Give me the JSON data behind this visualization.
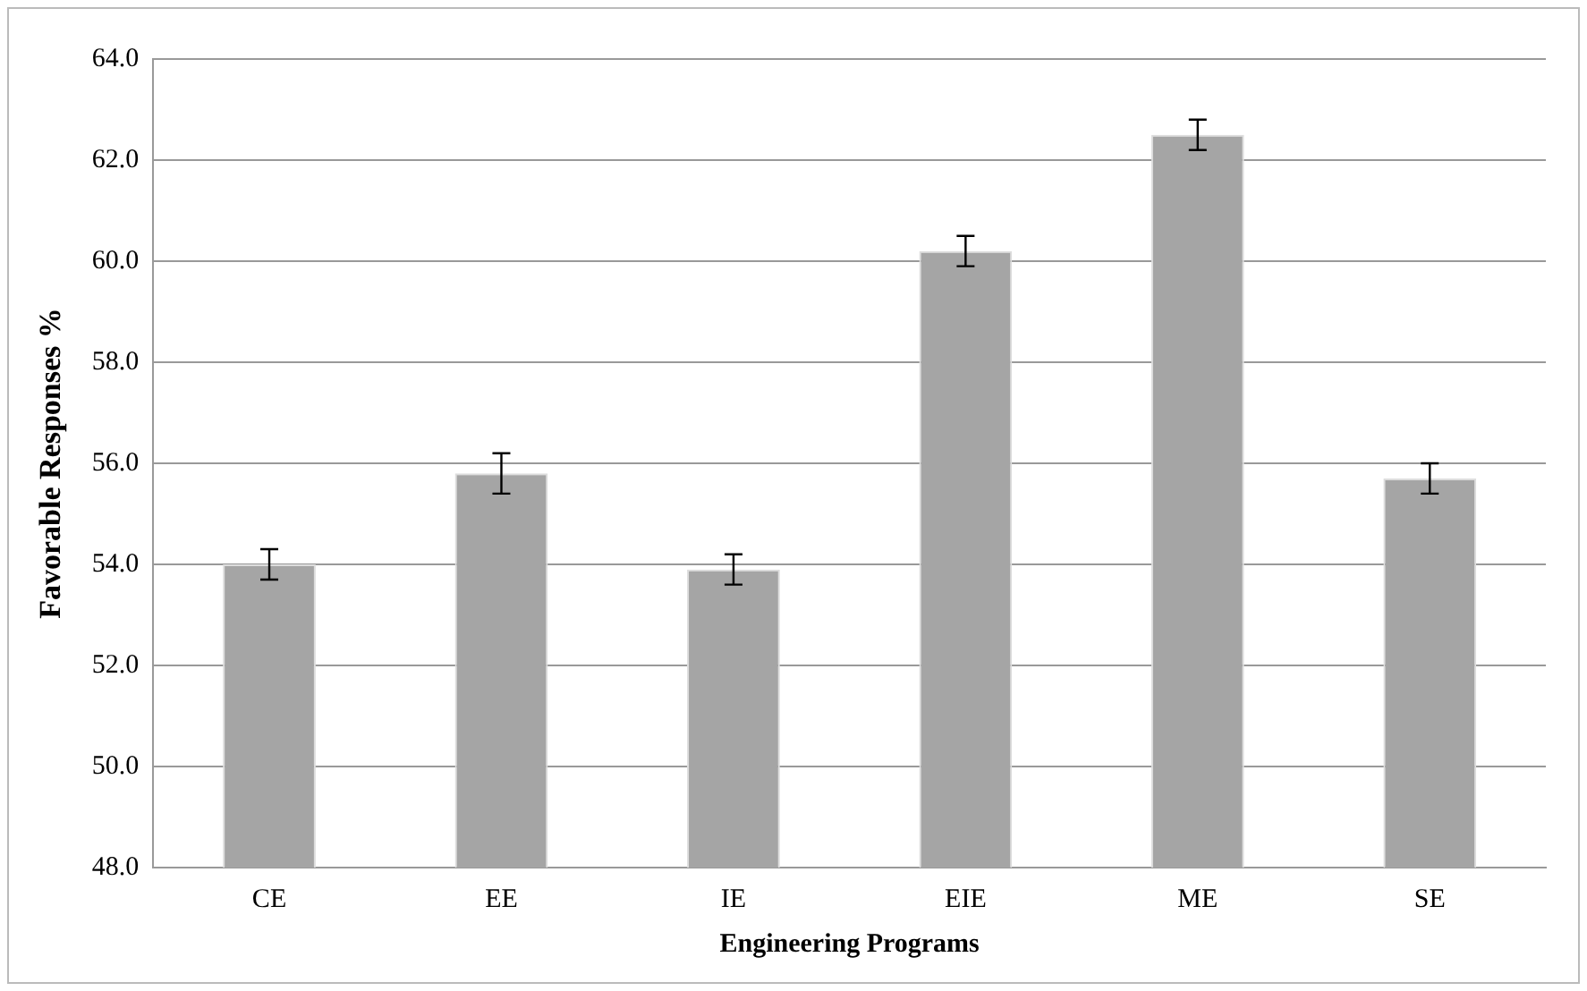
{
  "chart_data": {
    "type": "bar",
    "xlabel": "Engineering Programs",
    "ylabel": "Favorable Responses %",
    "categories": [
      "CE",
      "EE",
      "IE",
      "EIE",
      "ME",
      "SE"
    ],
    "values": [
      54.0,
      55.8,
      53.9,
      60.2,
      62.5,
      55.7
    ],
    "errors": [
      0.3,
      0.4,
      0.3,
      0.3,
      0.3,
      0.3
    ],
    "color": "#a5a5a5",
    "ylim": [
      48,
      64
    ],
    "yticks": [
      {
        "value": 48,
        "label": "48.0"
      },
      {
        "value": 50,
        "label": "50.0"
      },
      {
        "value": 52,
        "label": "52.0"
      },
      {
        "value": 54,
        "label": "54.0"
      },
      {
        "value": 56,
        "label": "56.0"
      },
      {
        "value": 58,
        "label": "58.0"
      },
      {
        "value": 60,
        "label": "60.0"
      },
      {
        "value": 62,
        "label": "62.0"
      },
      {
        "value": 64,
        "label": "64.0"
      }
    ],
    "grid": "y",
    "legend": false
  }
}
